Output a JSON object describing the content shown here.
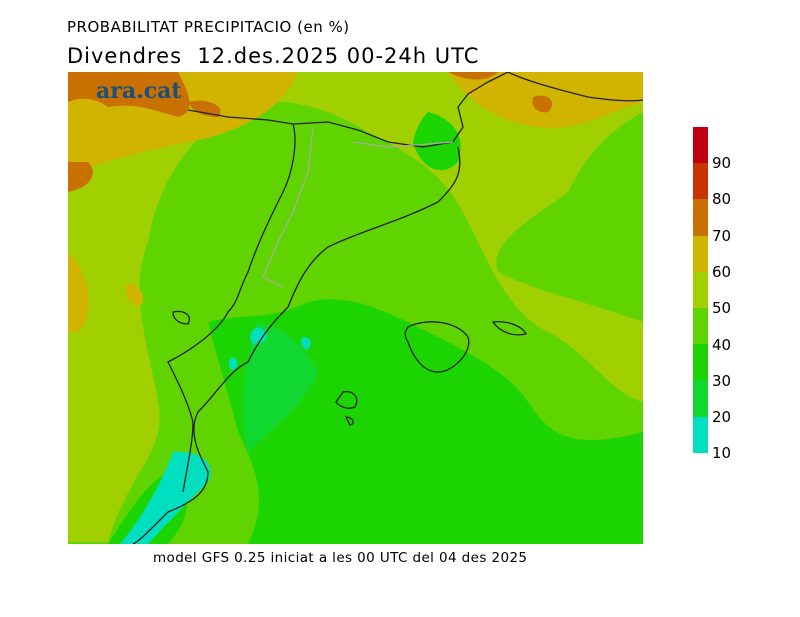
{
  "title": "PROBABILITAT PRECIPITACIO (en %)",
  "subtitle": "Divendres  12.des.2025 00-24h UTC",
  "logo": "ara.cat",
  "footer": "model GFS 0.25 iniciat a les 00 UTC del 04 des 2025",
  "legend": {
    "labels": [
      "90",
      "80",
      "70",
      "60",
      "50",
      "40",
      "30",
      "20",
      "10"
    ],
    "colors": [
      "#c00010",
      "#c83400",
      "#c87000",
      "#d0b400",
      "#a0d000",
      "#60d400",
      "#1cd400",
      "#10d830",
      "#00e0c0"
    ]
  }
}
